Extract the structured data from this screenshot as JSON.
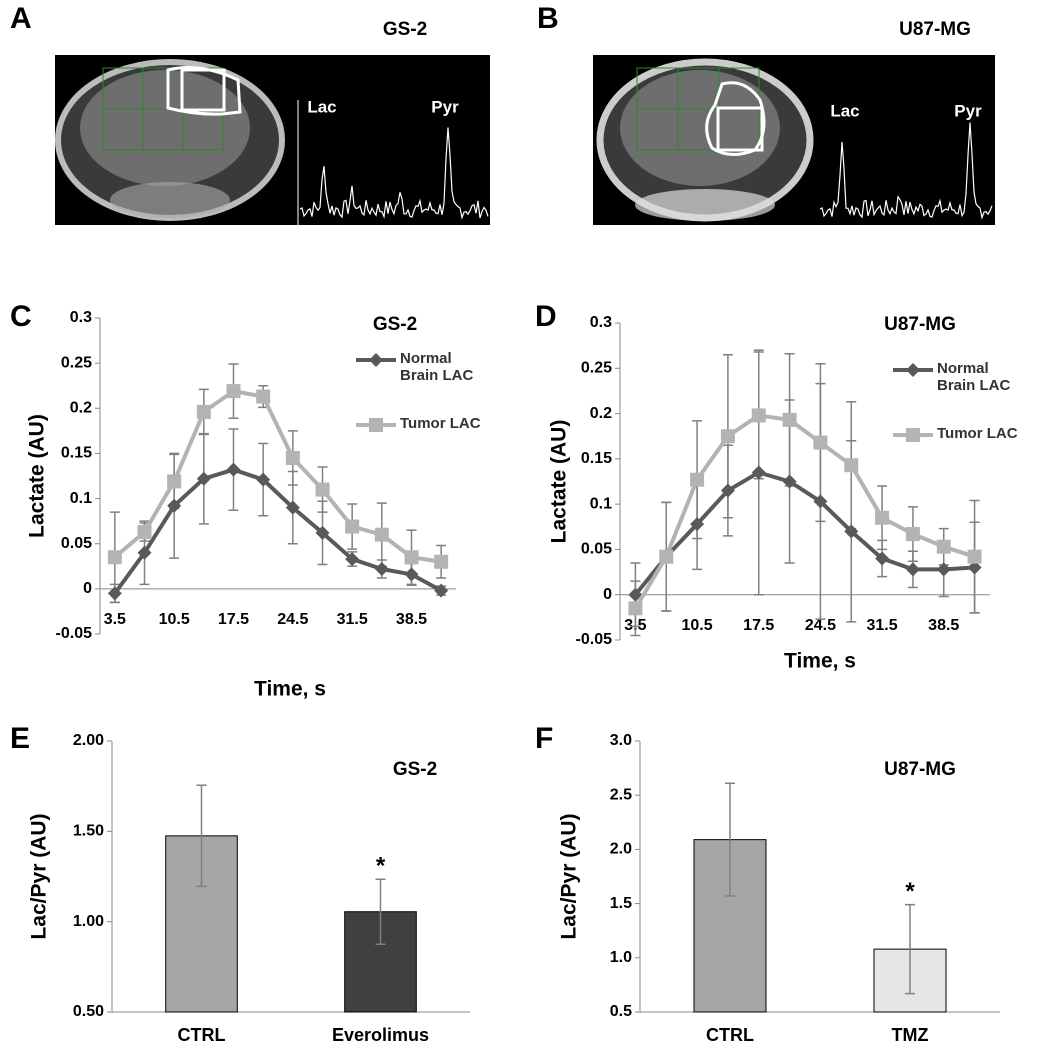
{
  "image_panels": [
    {
      "panel_label": "A",
      "title": "GS-2",
      "peaks": [
        "Lac",
        "Pyr"
      ]
    },
    {
      "panel_label": "B",
      "title": "U87-MG",
      "peaks": [
        "Lac",
        "Pyr"
      ]
    }
  ],
  "chart_data": [
    {
      "type": "line",
      "panel_label": "C",
      "title": "GS-2",
      "xlabel": "Time, s",
      "ylabel": "Lactate (AU)",
      "categories": [
        "3.5",
        null,
        "10.5",
        null,
        "17.5",
        null,
        "24.5",
        null,
        "31.5",
        null,
        "38.5",
        null
      ],
      "series": [
        {
          "name": "Normal Brain LAC",
          "color": "#595959",
          "marker": "diamond",
          "values": [
            -0.005,
            0.04,
            0.092,
            0.122,
            0.132,
            0.121,
            0.09,
            0.062,
            0.033,
            0.022,
            0.016,
            -0.002
          ],
          "errors": [
            0.01,
            0.035,
            0.058,
            0.05,
            0.045,
            0.04,
            0.04,
            0.035,
            0.008,
            0.01,
            0.012,
            0.005
          ]
        },
        {
          "name": "Tumor LAC",
          "color": "#b3b3b3",
          "marker": "square",
          "values": [
            0.035,
            0.063,
            0.119,
            0.196,
            0.219,
            0.213,
            0.145,
            0.11,
            0.069,
            0.06,
            0.035,
            0.03
          ],
          "errors": [
            0.05,
            0.01,
            0.03,
            0.025,
            0.03,
            0.012,
            0.03,
            0.025,
            0.025,
            0.035,
            0.03,
            0.018
          ]
        }
      ],
      "ylim": [
        -0.05,
        0.3
      ],
      "yticks": [
        -0.05,
        0,
        0.05,
        0.1,
        0.15,
        0.2,
        0.25,
        0.3
      ],
      "grid": false
    },
    {
      "type": "line",
      "panel_label": "D",
      "title": "U87-MG",
      "xlabel": "Time, s",
      "ylabel": "Lactate (AU)",
      "categories": [
        "3.5",
        null,
        "10.5",
        null,
        "17.5",
        null,
        "24.5",
        null,
        "31.5",
        null,
        "38.5",
        null
      ],
      "series": [
        {
          "name": "Normal Brain LAC",
          "color": "#595959",
          "marker": "diamond",
          "values": [
            0.0,
            0.042,
            0.078,
            0.115,
            0.135,
            0.125,
            0.103,
            0.07,
            0.04,
            0.028,
            0.028,
            0.03
          ],
          "errors": [
            0.035,
            0.06,
            0.05,
            0.05,
            0.135,
            0.09,
            0.13,
            0.1,
            0.02,
            0.02,
            0.03,
            0.05
          ]
        },
        {
          "name": "Tumor LAC",
          "color": "#b3b3b3",
          "marker": "square",
          "values": [
            -0.015,
            0.042,
            0.127,
            0.175,
            0.198,
            0.193,
            0.168,
            0.143,
            0.085,
            0.067,
            0.053,
            0.042
          ],
          "errors": [
            0.03,
            0.06,
            0.065,
            0.09,
            0.07,
            0.073,
            0.087,
            0.07,
            0.035,
            0.03,
            0.02,
            0.062
          ]
        }
      ],
      "ylim": [
        -0.05,
        0.3
      ],
      "yticks": [
        -0.05,
        0,
        0.05,
        0.1,
        0.15,
        0.2,
        0.25,
        0.3
      ],
      "grid": false
    },
    {
      "type": "bar",
      "panel_label": "E",
      "title": "GS-2",
      "ylabel": "Lac/Pyr (AU)",
      "categories": [
        "CTRL",
        "Everolimus"
      ],
      "values": [
        1.475,
        1.055
      ],
      "errors": [
        0.28,
        0.18
      ],
      "colors": [
        "#a6a6a6",
        "#404040"
      ],
      "annotation": "*",
      "annotation_category": "Everolimus",
      "ylim": [
        0.5,
        2.0
      ],
      "yticks": [
        {
          "value": 0.5,
          "label": "0.50"
        },
        {
          "value": 1.0,
          "label": "1.00"
        },
        {
          "value": 1.5,
          "label": "1.50"
        },
        {
          "value": 2.0,
          "label": "2.00"
        }
      ],
      "grid": false
    },
    {
      "type": "bar",
      "panel_label": "F",
      "title": "U87-MG",
      "ylabel": "Lac/Pyr (AU)",
      "categories": [
        "CTRL",
        "TMZ"
      ],
      "values": [
        2.09,
        1.08
      ],
      "errors": [
        0.52,
        0.41
      ],
      "colors": [
        "#a6a6a6",
        "#e6e6e6"
      ],
      "annotation": "*",
      "annotation_category": "TMZ",
      "ylim": [
        0.5,
        3.0
      ],
      "yticks": [
        0.5,
        {
          "value": 1.0,
          "label": "1.0"
        },
        1.5,
        {
          "value": 2.0,
          "label": "2.0"
        },
        2.5,
        {
          "value": 3.0,
          "label": "3.0"
        }
      ],
      "grid": false
    }
  ]
}
